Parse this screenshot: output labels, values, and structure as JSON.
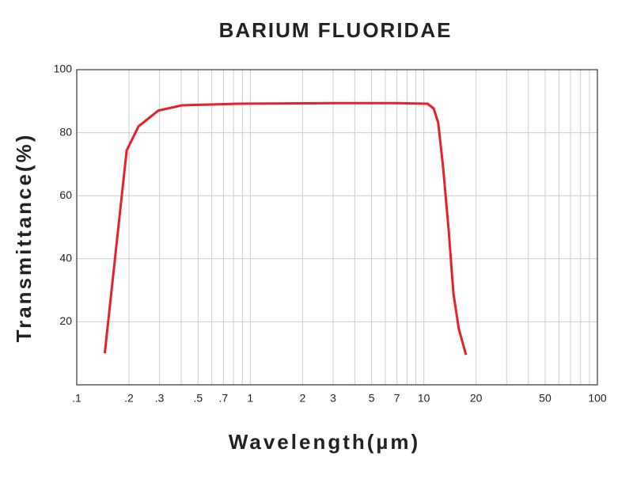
{
  "chart_data": {
    "type": "line",
    "title": "BARIUM FLUORIDAE",
    "x_label": "Wavelength(µm)",
    "y_label": "Transmittance(%)",
    "x": [
      0.145,
      0.194,
      0.227,
      0.295,
      0.404,
      0.843,
      2.97,
      6.9,
      10.5,
      11.4,
      12.1,
      12.9,
      13.9,
      14.8,
      15.9,
      17.5
    ],
    "values": [
      10,
      74.4,
      82,
      87,
      88.7,
      89.2,
      89.4,
      89.4,
      89.2,
      87.7,
      83.2,
      69.3,
      49.2,
      29.1,
      17.8,
      9.5
    ],
    "color": "#e8202a",
    "x_log": true,
    "grid": true,
    "xlim": [
      0.1,
      100
    ],
    "ylim": [
      0,
      100
    ],
    "xticks": [
      {
        "value": 0.1,
        "label": ".1"
      },
      {
        "value": 0.2,
        "label": ".2"
      },
      {
        "value": 0.3,
        "label": ".3"
      },
      {
        "value": 0.5,
        "label": ".5"
      },
      {
        "value": 0.7,
        "label": ".7"
      },
      1,
      2,
      3,
      5,
      7,
      10,
      20,
      50,
      100
    ],
    "x_minor_ticks": [
      0.2,
      0.3,
      0.4,
      0.5,
      0.6,
      0.7,
      0.8,
      0.9,
      1,
      2,
      3,
      4,
      5,
      6,
      7,
      8,
      9,
      10,
      20,
      30,
      40,
      50,
      60,
      70,
      80,
      90
    ],
    "yticks": [
      20,
      40,
      60,
      80,
      100
    ]
  }
}
